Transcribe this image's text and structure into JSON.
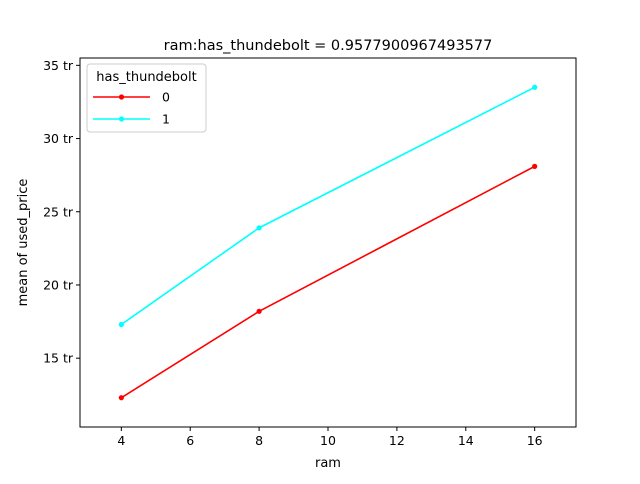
{
  "chart_data": {
    "type": "line",
    "title": "ram:has_thundebolt = 0.9577900967493577",
    "xlabel": "ram",
    "ylabel": "mean of used_price",
    "xlim": [
      2.8,
      17.2
    ],
    "ylim": [
      10.3,
      35.5
    ],
    "x_ticks": [
      4,
      6,
      8,
      10,
      12,
      14,
      16
    ],
    "x_tick_labels": [
      "4",
      "6",
      "8",
      "10",
      "12",
      "14",
      "16"
    ],
    "y_ticks": [
      15,
      20,
      25,
      30,
      35
    ],
    "y_tick_labels": [
      "15 tr",
      "20 tr",
      "25 tr",
      "30 tr",
      "35 tr"
    ],
    "legend": {
      "title": "has_thundebolt",
      "placement": "upper-left"
    },
    "grid": false,
    "series": [
      {
        "name": "0",
        "color": "#ff0000",
        "x": [
          4,
          8,
          16
        ],
        "y": [
          12.3,
          18.2,
          28.1
        ]
      },
      {
        "name": "1",
        "color": "#00ffff",
        "x": [
          4,
          8,
          16
        ],
        "y": [
          17.3,
          23.9,
          33.5
        ]
      }
    ]
  }
}
